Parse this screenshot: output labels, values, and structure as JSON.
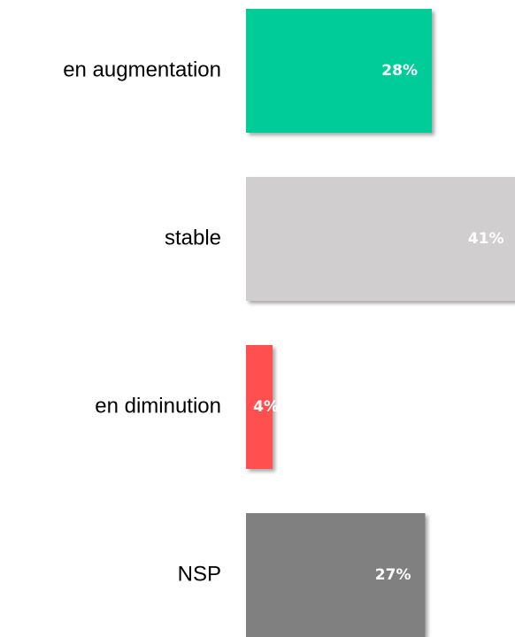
{
  "chart_data": {
    "type": "hbar",
    "categories": [
      "en augmentation",
      "stable",
      "en diminution",
      "NSP"
    ],
    "values": [
      28,
      41,
      4,
      27
    ],
    "value_labels": [
      "28%",
      "41%",
      "4%",
      "27%"
    ],
    "colors": [
      "#00cc99",
      "#d0cecf",
      "#ff5050",
      "#808080"
    ]
  }
}
